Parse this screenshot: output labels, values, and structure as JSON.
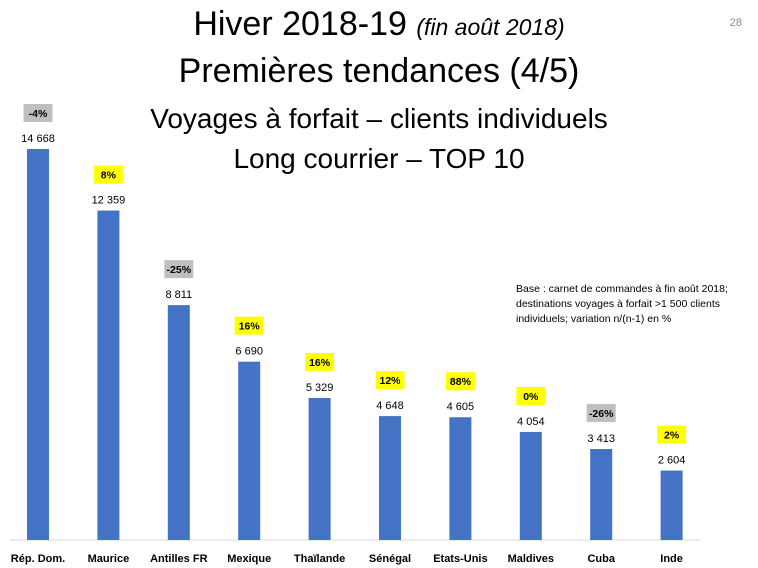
{
  "page_number": "28",
  "header": {
    "title_main": "Hiver 2018-19",
    "title_sub": "(fin août 2018)",
    "line2": "Premières tendances (4/5)",
    "line3": "Voyages à forfait – clients individuels",
    "line4": "Long courrier – TOP 10"
  },
  "note": "Base : carnet de commandes à fin août 2018; destinations voyages à forfait >1 500 clients individuels; variation n/(n-1) en %",
  "colors": {
    "bar": "#4472c4",
    "badge_positive": "#ffff00",
    "badge_negative": "#bfbfbf"
  },
  "chart_data": {
    "type": "bar",
    "categories": [
      "Rép. Dom.",
      "Maurice",
      "Antilles FR",
      "Mexique",
      "Thaïlande",
      "Sénégal",
      "Etats-Unis",
      "Maldives",
      "Cuba",
      "Inde"
    ],
    "values": [
      14668,
      12359,
      8811,
      6690,
      5329,
      4648,
      4605,
      4054,
      3413,
      2604
    ],
    "value_labels": [
      "14 668",
      "12 359",
      "8 811",
      "6 690",
      "5 329",
      "4 648",
      "4 605",
      "4 054",
      "3 413",
      "2 604"
    ],
    "variation": [
      "-4%",
      "8%",
      "-25%",
      "16%",
      "16%",
      "12%",
      "88%",
      "0%",
      "-26%",
      "2%"
    ],
    "variation_sign": [
      "neg",
      "pos",
      "neg",
      "pos",
      "pos",
      "pos",
      "pos",
      "pos",
      "neg",
      "pos"
    ],
    "ylim": [
      0,
      14668
    ]
  }
}
